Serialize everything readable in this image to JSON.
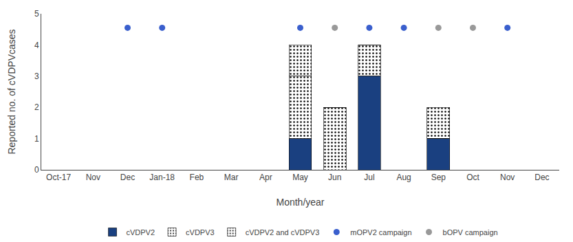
{
  "chart_data": {
    "type": "bar",
    "stacked": true,
    "xlabel": "Month/year",
    "ylabel": "Reported no. of cVDPVcases",
    "categories": [
      "Oct-17",
      "Nov",
      "Dec",
      "Jan-18",
      "Feb",
      "Mar",
      "Apr",
      "May",
      "Jun",
      "Jul",
      "Aug",
      "Sep",
      "Oct",
      "Nov",
      "Dec"
    ],
    "series": [
      {
        "name": "cVDPV2",
        "type": "bar",
        "color": "#1a4080",
        "values": [
          0,
          0,
          0,
          0,
          0,
          0,
          0,
          1,
          0,
          3,
          0,
          1,
          0,
          0,
          0
        ]
      },
      {
        "name": "cVDPV3",
        "type": "bar",
        "color": "#4472c4",
        "values": [
          0,
          0,
          0,
          0,
          0,
          0,
          0,
          2,
          2,
          1,
          0,
          0,
          0,
          0,
          0
        ]
      },
      {
        "name": "cVDPV2 and cVDPV3",
        "type": "bar",
        "color": "#c8d4e8",
        "values": [
          0,
          0,
          0,
          0,
          0,
          0,
          0,
          1,
          0,
          0,
          0,
          1,
          0,
          0,
          0
        ]
      },
      {
        "name": "mOPV2 campaign",
        "type": "scatter",
        "marker": "circle",
        "color": "#3a5fcd",
        "values": [
          null,
          null,
          4.55,
          4.55,
          null,
          null,
          null,
          4.55,
          null,
          4.55,
          4.55,
          null,
          null,
          4.55,
          null
        ]
      },
      {
        "name": "bOPV campaign",
        "type": "scatter",
        "marker": "circle",
        "color": "#999999",
        "values": [
          null,
          null,
          null,
          null,
          null,
          null,
          null,
          null,
          4.55,
          null,
          null,
          4.55,
          4.55,
          null,
          null
        ]
      }
    ],
    "ylim": [
      0,
      5
    ],
    "yticks": [
      0,
      1,
      2,
      3,
      4,
      5
    ],
    "grid": false,
    "legend": "bottom"
  }
}
